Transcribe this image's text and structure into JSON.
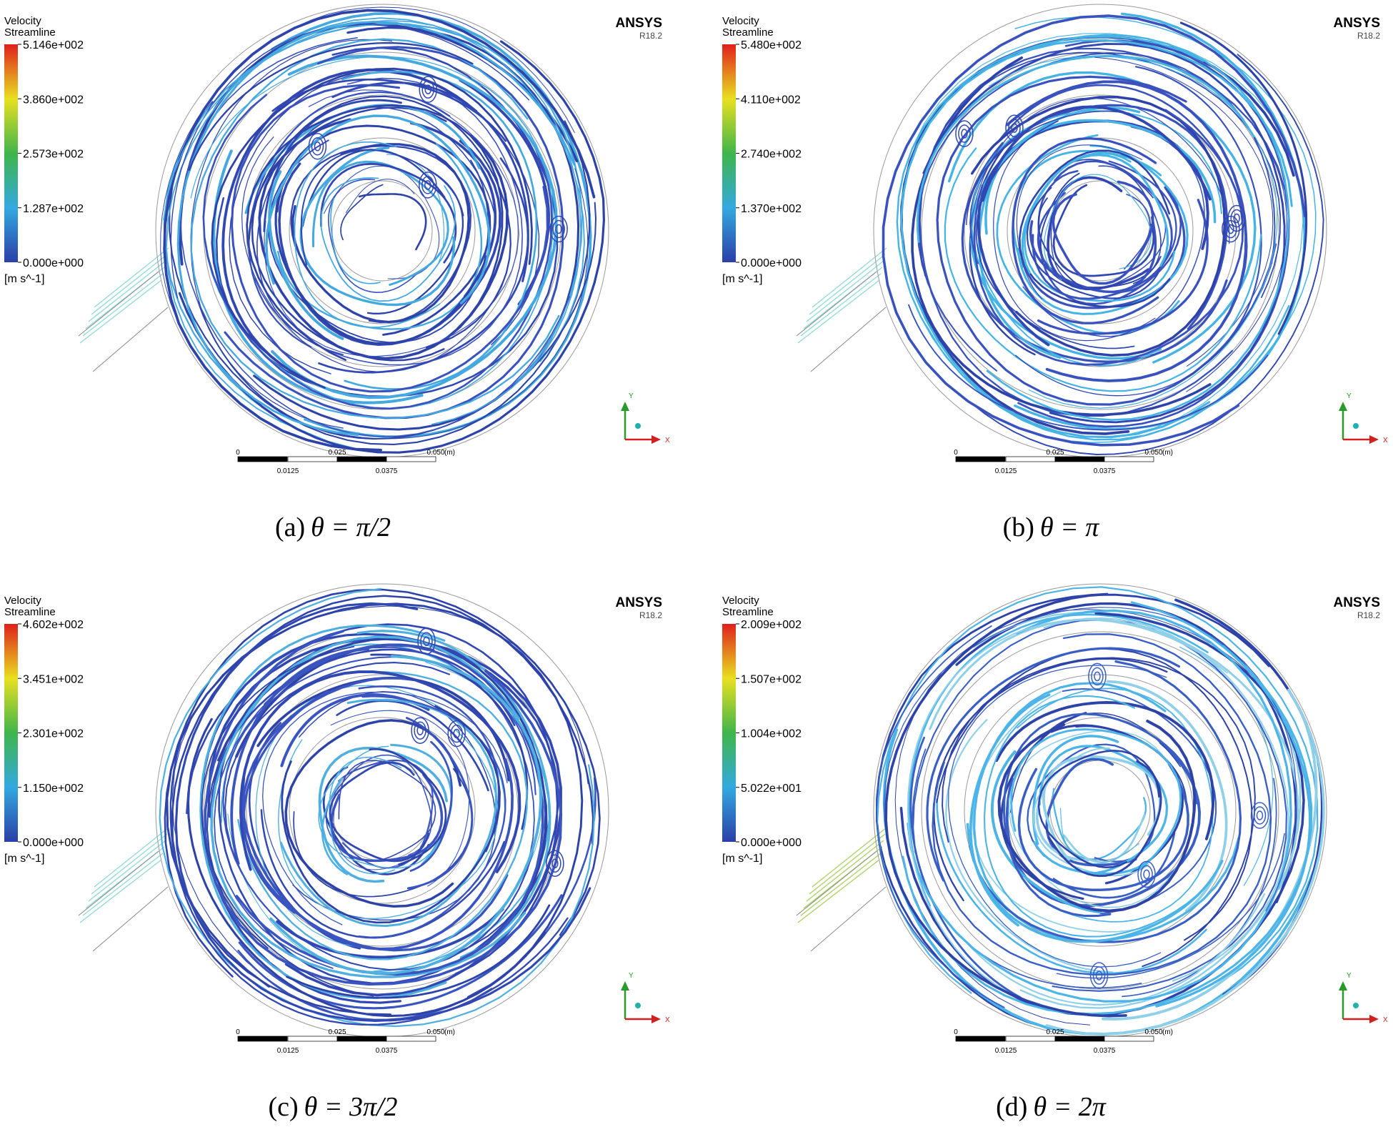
{
  "panels": [
    {
      "legend_title": "Velocity",
      "legend_subtitle": "Streamline",
      "colorbar_ticks": [
        "5.146e+002",
        "3.860e+002",
        "2.573e+002",
        "1.287e+002",
        "0.000e+000"
      ],
      "unit": "[m s^-1]",
      "brand": "ANSYS",
      "version": "R18.2",
      "scale_top": [
        "0",
        "0.025",
        "0.050",
        "(m)"
      ],
      "scale_bottom": [
        "0.0125",
        "0.0375"
      ],
      "axis_y": "Y",
      "axis_x": "X",
      "caption_label": "(a)",
      "caption_expr": "θ = π/2"
    },
    {
      "legend_title": "Velocity",
      "legend_subtitle": "Streamline",
      "colorbar_ticks": [
        "5.480e+002",
        "4.110e+002",
        "2.740e+002",
        "1.370e+002",
        "0.000e+000"
      ],
      "unit": "[m s^-1]",
      "brand": "ANSYS",
      "version": "R18.2",
      "scale_top": [
        "0",
        "0.025",
        "0.050",
        "(m)"
      ],
      "scale_bottom": [
        "0.0125",
        "0.0375"
      ],
      "axis_y": "Y",
      "axis_x": "X",
      "caption_label": "(b)",
      "caption_expr": "θ = π"
    },
    {
      "legend_title": "Velocity",
      "legend_subtitle": "Streamline",
      "colorbar_ticks": [
        "4.602e+002",
        "3.451e+002",
        "2.301e+002",
        "1.150e+002",
        "0.000e+000"
      ],
      "unit": "[m s^-1]",
      "brand": "ANSYS",
      "version": "R18.2",
      "scale_top": [
        "0",
        "0.025",
        "0.050",
        "(m)"
      ],
      "scale_bottom": [
        "0.0125",
        "0.0375"
      ],
      "axis_y": "Y",
      "axis_x": "X",
      "caption_label": "(c)",
      "caption_expr": "θ = 3π/2"
    },
    {
      "legend_title": "Velocity",
      "legend_subtitle": "Streamline",
      "colorbar_ticks": [
        "2.009e+002",
        "1.507e+002",
        "1.004e+002",
        "5.022e+001",
        "0.000e+000"
      ],
      "unit": "[m s^-1]",
      "brand": "ANSYS",
      "version": "R18.2",
      "scale_top": [
        "0",
        "0.025",
        "0.050",
        "(m)"
      ],
      "scale_bottom": [
        "0.0125",
        "0.0375"
      ],
      "axis_y": "Y",
      "axis_x": "X",
      "caption_label": "(d)",
      "caption_expr": "θ = 2π"
    }
  ]
}
